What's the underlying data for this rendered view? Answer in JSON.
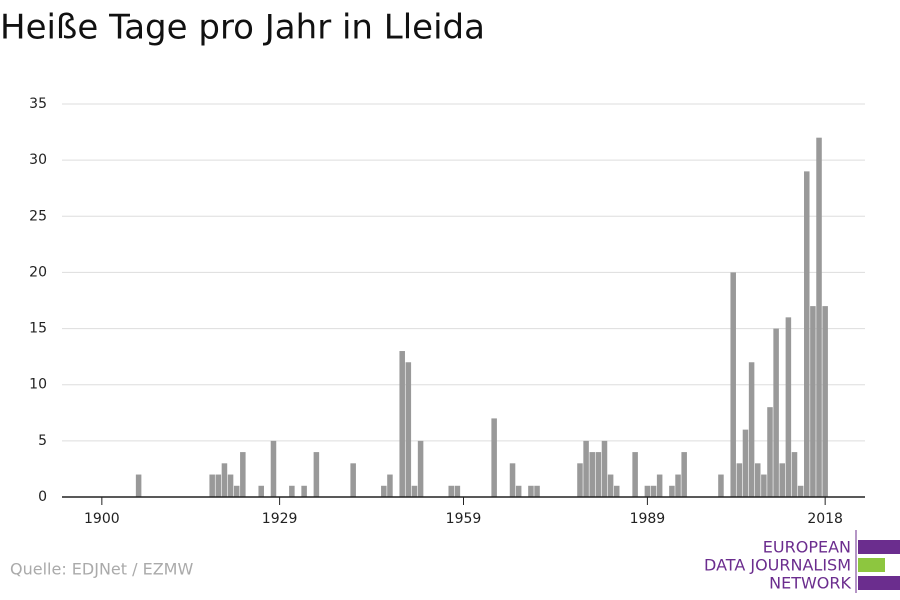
{
  "chart_data": {
    "type": "bar",
    "title": "Heiße Tage pro Jahr in Lleida",
    "source": "Quelle: EDJNet / EZMW",
    "logo": [
      "EUROPEAN",
      "DATA JOURNALISM",
      "NETWORK"
    ],
    "color": "#999999",
    "grid": true,
    "x": [
      1900,
      1901,
      1902,
      1903,
      1904,
      1905,
      1906,
      1907,
      1908,
      1909,
      1910,
      1911,
      1912,
      1913,
      1914,
      1915,
      1916,
      1917,
      1918,
      1919,
      1920,
      1921,
      1922,
      1923,
      1924,
      1925,
      1926,
      1927,
      1928,
      1929,
      1930,
      1931,
      1932,
      1933,
      1934,
      1935,
      1936,
      1937,
      1938,
      1939,
      1940,
      1941,
      1942,
      1943,
      1944,
      1945,
      1946,
      1947,
      1948,
      1949,
      1950,
      1951,
      1952,
      1953,
      1954,
      1955,
      1956,
      1957,
      1958,
      1959,
      1960,
      1961,
      1962,
      1963,
      1964,
      1965,
      1966,
      1967,
      1968,
      1969,
      1970,
      1971,
      1972,
      1973,
      1974,
      1975,
      1976,
      1977,
      1978,
      1979,
      1980,
      1981,
      1982,
      1983,
      1984,
      1985,
      1986,
      1987,
      1988,
      1989,
      1990,
      1991,
      1992,
      1993,
      1994,
      1995,
      1996,
      1997,
      1998,
      1999,
      2000,
      2001,
      2002,
      2003,
      2004,
      2005,
      2006,
      2007,
      2008,
      2009,
      2010,
      2011,
      2012,
      2013,
      2014,
      2015,
      2016,
      2017,
      2018
    ],
    "values": [
      0,
      0,
      0,
      0,
      0,
      0,
      2,
      0,
      0,
      0,
      0,
      0,
      0,
      0,
      0,
      0,
      0,
      0,
      2,
      2,
      3,
      2,
      1,
      4,
      0,
      0,
      1,
      0,
      5,
      0,
      0,
      1,
      0,
      1,
      0,
      4,
      0,
      0,
      0,
      0,
      0,
      3,
      0,
      0,
      0,
      0,
      1,
      2,
      0,
      13,
      12,
      1,
      5,
      0,
      0,
      0,
      0,
      1,
      1,
      0,
      0,
      0,
      0,
      0,
      7,
      0,
      0,
      3,
      1,
      0,
      1,
      1,
      0,
      0,
      0,
      0,
      0,
      0,
      3,
      5,
      4,
      4,
      5,
      2,
      1,
      0,
      0,
      4,
      0,
      1,
      1,
      2,
      0,
      1,
      2,
      4,
      0,
      0,
      0,
      0,
      0,
      2,
      0,
      20,
      3,
      6,
      12,
      3,
      2,
      8,
      15,
      3,
      16,
      4,
      1,
      29,
      17,
      32,
      17
    ],
    "xlim": [
      1893.5,
      2024.5
    ],
    "xticks": [
      1900,
      1929,
      1959,
      1989,
      2018
    ],
    "ylim": [
      0,
      35
    ],
    "yticks": [
      0,
      5,
      10,
      15,
      20,
      25,
      30,
      35
    ]
  }
}
